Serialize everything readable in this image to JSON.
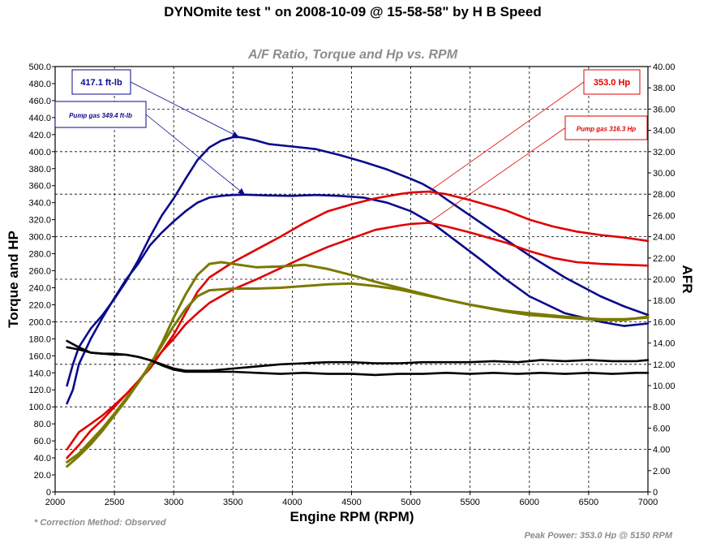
{
  "title": "DYNOmite test \" on 2008-10-09 @ 15-58-58\" by H B Speed",
  "subtitle": "A/F Ratio, Torque and Hp vs. RPM",
  "footer": {
    "correction": "* Correction Method: Observed",
    "peak": "Peak Power: 353.0 Hp @ 5150 RPM"
  },
  "callouts": [
    {
      "text": "417.1 ft-lb",
      "color": "#0a0a8c",
      "style": "big",
      "target_rpm": 3550,
      "target_y": 417.1
    },
    {
      "text": "Pump gas 349.4 ft-lb",
      "color": "#0a0a8c",
      "style": "small",
      "target_rpm": 3600,
      "target_y": 349.4
    },
    {
      "text": "353.0 Hp",
      "color": "#e00000",
      "style": "big",
      "target_rpm": 5150,
      "target_y": 353.0
    },
    {
      "text": "Pump gas 316.3 Hp",
      "color": "#e00000",
      "style": "small",
      "target_rpm": 5150,
      "target_y": 316.3
    }
  ],
  "chart_data": {
    "type": "line",
    "title": "A/F Ratio, Torque and Hp vs. RPM",
    "xlabel": "Engine RPM (RPM)",
    "ylabel": "Torque and HP",
    "y2label": "AFR",
    "xlim": [
      2000,
      7000
    ],
    "ylim": [
      0,
      500
    ],
    "y2lim": [
      0,
      40
    ],
    "grid": true,
    "x_ticks": [
      2000,
      2500,
      3000,
      3500,
      4000,
      4500,
      5000,
      5500,
      6000,
      6500,
      7000
    ],
    "x_tick_labels": [
      "2000",
      "2500",
      "3000",
      "3500",
      "4000",
      "4500",
      "5000",
      "5500",
      "6000",
      "6500",
      "7000"
    ],
    "y_ticks": [
      0,
      20,
      40,
      60,
      80,
      100,
      120,
      140,
      160,
      180,
      200,
      220,
      240,
      260,
      280,
      300,
      320,
      340,
      360,
      380,
      400,
      420,
      440,
      460,
      480,
      500
    ],
    "y_tick_labels": [
      "0",
      "20.0",
      "40.0",
      "60.0",
      "80.0",
      "100.0",
      "120.0",
      "140.0",
      "160.0",
      "180.0",
      "200.0",
      "220.0",
      "240.0",
      "260.0",
      "280.0",
      "300.0",
      "320.0",
      "340.0",
      "360.0",
      "380.0",
      "400.0",
      "420.0",
      "440.0",
      "460.0",
      "480.0",
      "500.0"
    ],
    "y2_ticks": [
      0,
      2,
      4,
      6,
      8,
      10,
      12,
      14,
      16,
      18,
      20,
      22,
      24,
      26,
      28,
      30,
      32,
      34,
      36,
      38,
      40
    ],
    "y2_tick_labels": [
      "0",
      "2.00",
      "4.00",
      "6.00",
      "8.00",
      "10.00",
      "12.00",
      "14.00",
      "16.00",
      "18.00",
      "20.00",
      "22.00",
      "24.00",
      "26.00",
      "28.00",
      "30.00",
      "32.00",
      "34.00",
      "36.00",
      "38.00",
      "40.00"
    ],
    "series": [
      {
        "color": "#0a0a8c",
        "width": 2.6,
        "axis": "left",
        "x": [
          2100,
          2150,
          2200,
          2300,
          2400,
          2500,
          2600,
          2700,
          2800,
          2900,
          3000,
          3100,
          3200,
          3300,
          3400,
          3500,
          3550,
          3600,
          3700,
          3800,
          4000,
          4200,
          4400,
          4600,
          4800,
          5000,
          5100,
          5200,
          5300,
          5500,
          5700,
          6000,
          6300,
          6600,
          6800,
          7000
        ],
        "y": [
          125,
          150,
          170,
          192,
          208,
          227,
          248,
          272,
          300,
          325,
          345,
          368,
          390,
          405,
          413,
          417,
          417.1,
          416,
          413,
          409,
          406,
          403,
          396,
          388,
          379,
          368,
          362,
          354,
          344,
          325,
          306,
          278,
          252,
          230,
          218,
          208
        ]
      },
      {
        "color": "#0a0a8c",
        "width": 2.6,
        "axis": "left",
        "x": [
          2100,
          2150,
          2200,
          2300,
          2400,
          2500,
          2600,
          2700,
          2800,
          2900,
          3000,
          3100,
          3200,
          3300,
          3400,
          3500,
          3600,
          3800,
          4000,
          4200,
          4400,
          4600,
          4800,
          5000,
          5200,
          5400,
          5600,
          5800,
          6000,
          6300,
          6600,
          6800,
          7000
        ],
        "y": [
          104,
          120,
          150,
          180,
          205,
          228,
          250,
          268,
          290,
          305,
          318,
          330,
          340,
          346,
          348,
          349,
          349.4,
          348.5,
          348,
          349,
          348,
          346,
          340,
          330,
          314,
          293,
          272,
          250,
          230,
          210,
          200,
          195,
          198
        ]
      },
      {
        "color": "#e00000",
        "width": 2.6,
        "axis": "left",
        "x": [
          2100,
          2200,
          2300,
          2400,
          2500,
          2600,
          2700,
          2800,
          2900,
          3000,
          3100,
          3200,
          3300,
          3500,
          3700,
          3900,
          4100,
          4300,
          4500,
          4700,
          4900,
          5000,
          5150,
          5300,
          5500,
          5800,
          6000,
          6200,
          6400,
          6600,
          6800,
          7000
        ],
        "y": [
          50,
          70,
          80,
          90,
          102,
          115,
          130,
          145,
          165,
          185,
          210,
          235,
          252,
          270,
          285,
          300,
          316,
          330,
          338,
          345,
          350,
          352,
          353,
          350,
          343,
          331,
          320,
          312,
          306,
          302,
          299,
          295
        ]
      },
      {
        "color": "#e00000",
        "width": 2.6,
        "axis": "left",
        "x": [
          2100,
          2200,
          2300,
          2400,
          2500,
          2600,
          2700,
          2800,
          2900,
          3000,
          3100,
          3200,
          3300,
          3500,
          3700,
          3900,
          4100,
          4300,
          4500,
          4700,
          4900,
          5000,
          5150,
          5300,
          5500,
          5800,
          6000,
          6200,
          6400,
          6600,
          6800,
          7000
        ],
        "y": [
          40,
          55,
          72,
          85,
          100,
          115,
          130,
          148,
          165,
          180,
          197,
          210,
          222,
          238,
          250,
          263,
          276,
          288,
          298,
          308,
          313,
          315,
          316.3,
          312,
          305,
          293,
          283,
          275,
          270,
          268,
          267,
          266
        ]
      },
      {
        "color": "#7a7a00",
        "width": 3.0,
        "axis": "left",
        "x": [
          2100,
          2200,
          2300,
          2400,
          2500,
          2600,
          2700,
          2800,
          2900,
          3000,
          3100,
          3200,
          3300,
          3400,
          3500,
          3700,
          3900,
          4100,
          4300,
          4500,
          4700,
          4900,
          5100,
          5300,
          5500,
          5800,
          6000,
          6300,
          6600,
          6800,
          7000
        ],
        "y": [
          35,
          45,
          60,
          75,
          92,
          110,
          128,
          148,
          175,
          205,
          232,
          255,
          268,
          270,
          268,
          264,
          265,
          267,
          262,
          255,
          247,
          240,
          233,
          226,
          220,
          213,
          210,
          206,
          203,
          203,
          205
        ]
      },
      {
        "color": "#7a7a00",
        "width": 3.0,
        "axis": "left",
        "x": [
          2100,
          2200,
          2300,
          2400,
          2500,
          2600,
          2700,
          2800,
          2900,
          3000,
          3100,
          3200,
          3300,
          3500,
          3700,
          3900,
          4100,
          4300,
          4500,
          4700,
          4900,
          5100,
          5300,
          5500,
          5800,
          6000,
          6300,
          6600,
          6800,
          7000
        ],
        "y": [
          30,
          42,
          56,
          72,
          90,
          108,
          128,
          150,
          172,
          195,
          215,
          230,
          237,
          239,
          239,
          240,
          242,
          244,
          245,
          242,
          238,
          232,
          226,
          220,
          212,
          208,
          205,
          202,
          202,
          206
        ]
      },
      {
        "color": "#000000",
        "width": 2.6,
        "axis": "right",
        "x": [
          2100,
          2200,
          2300,
          2400,
          2500,
          2600,
          2700,
          2800,
          2900,
          3000,
          3100,
          3300,
          3500,
          3700,
          3900,
          4100,
          4300,
          4500,
          4700,
          4900,
          5100,
          5300,
          5500,
          5700,
          5900,
          6100,
          6300,
          6500,
          6700,
          6900,
          7000
        ],
        "y": [
          13.6,
          13.4,
          13.1,
          13.0,
          12.9,
          12.9,
          12.7,
          12.4,
          12.0,
          11.6,
          11.4,
          11.4,
          11.6,
          11.8,
          12.0,
          12.1,
          12.2,
          12.2,
          12.1,
          12.1,
          12.2,
          12.2,
          12.2,
          12.3,
          12.2,
          12.4,
          12.3,
          12.4,
          12.3,
          12.3,
          12.4
        ]
      },
      {
        "color": "#000000",
        "width": 2.6,
        "axis": "right",
        "x": [
          2100,
          2200,
          2300,
          2400,
          2500,
          2600,
          2700,
          2800,
          2900,
          3000,
          3100,
          3300,
          3500,
          3700,
          3900,
          4100,
          4300,
          4500,
          4700,
          4900,
          5100,
          5300,
          5500,
          5700,
          5900,
          6100,
          6300,
          6500,
          6700,
          6900,
          7000
        ],
        "y": [
          14.2,
          13.6,
          13.1,
          13.0,
          13.0,
          12.9,
          12.7,
          12.4,
          11.9,
          11.5,
          11.3,
          11.3,
          11.3,
          11.2,
          11.1,
          11.2,
          11.1,
          11.1,
          11.0,
          11.1,
          11.1,
          11.2,
          11.1,
          11.2,
          11.1,
          11.2,
          11.1,
          11.2,
          11.1,
          11.2,
          11.2
        ]
      }
    ]
  }
}
